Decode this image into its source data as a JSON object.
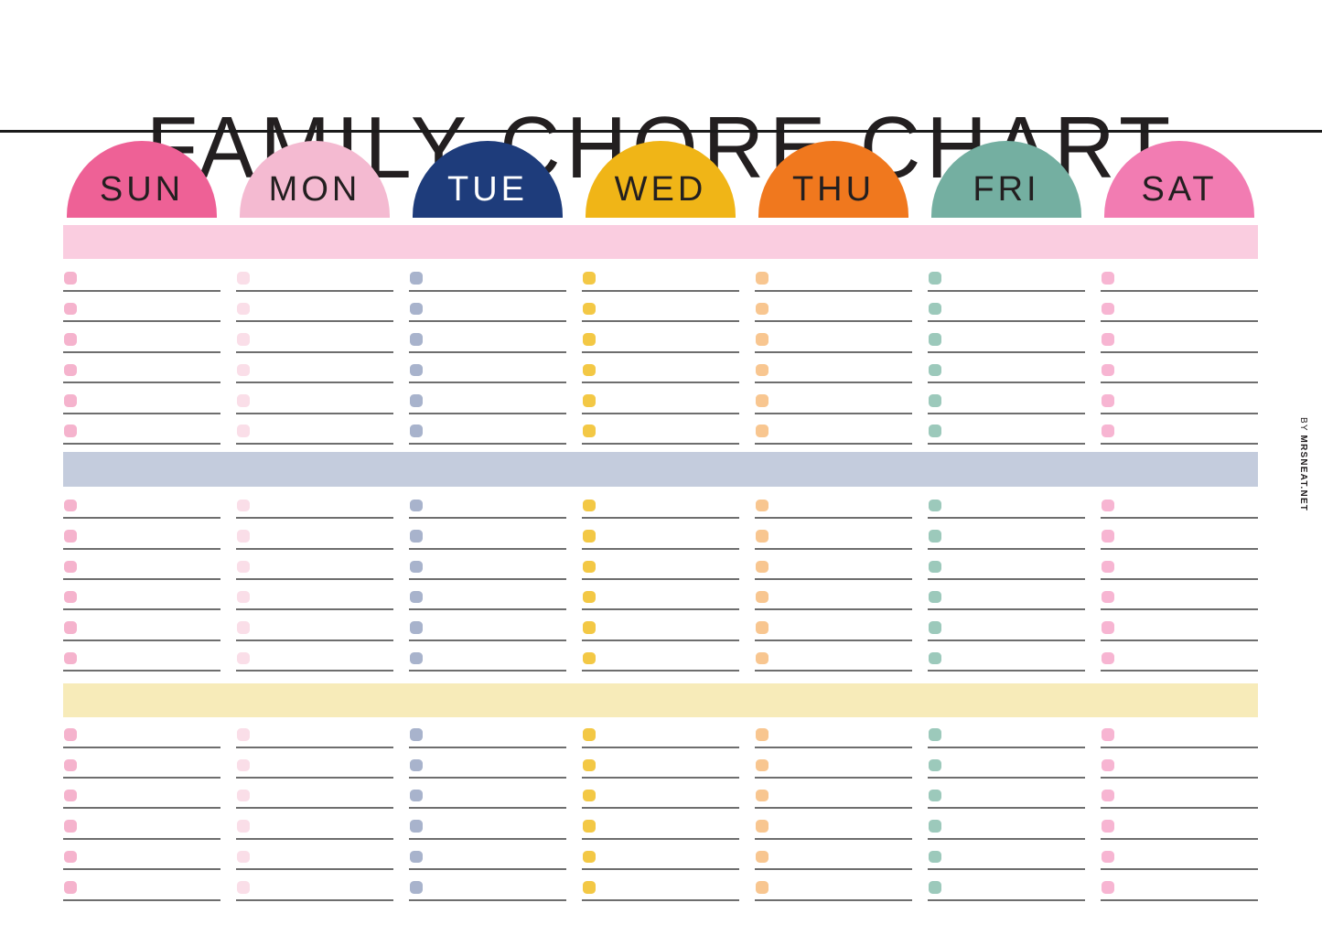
{
  "title": "FAMILY CHORE CHART",
  "credit": {
    "prefix": "BY ",
    "name": "MRSNEAT.NET"
  },
  "days": [
    {
      "label": "SUN",
      "dome_color": "#EE6196",
      "text_color": "#231F20",
      "checkbox_color": "#F5B3CD"
    },
    {
      "label": "MON",
      "dome_color": "#F4BAD1",
      "text_color": "#231F20",
      "checkbox_color": "#FADEE8"
    },
    {
      "label": "TUE",
      "dome_color": "#1E3C7B",
      "text_color": "#FFFFFF",
      "checkbox_color": "#A8B3CC"
    },
    {
      "label": "WED",
      "dome_color": "#F0B517",
      "text_color": "#231F20",
      "checkbox_color": "#F3C845"
    },
    {
      "label": "THU",
      "dome_color": "#F0781E",
      "text_color": "#231F20",
      "checkbox_color": "#F8C690"
    },
    {
      "label": "FRI",
      "dome_color": "#74AFA1",
      "text_color": "#231F20",
      "checkbox_color": "#9CC9BB"
    },
    {
      "label": "SAT",
      "dome_color": "#F27CB2",
      "text_color": "#231F20",
      "checkbox_color": "#F7B5D2"
    }
  ],
  "sections": [
    {
      "name": "morning-section",
      "banner_color": "#FACDE0",
      "rows": 6
    },
    {
      "name": "afternoon-section",
      "banner_color": "#C4CCDD",
      "rows": 6
    },
    {
      "name": "evening-section",
      "banner_color": "#F7EBB9",
      "rows": 6
    }
  ],
  "line_color": "#6E6E6E",
  "rule_color": "#1B1B1B"
}
